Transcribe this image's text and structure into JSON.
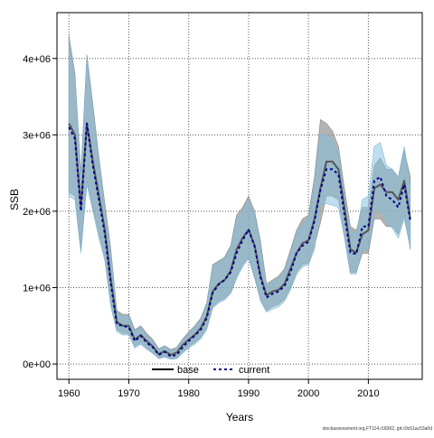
{
  "chart_data": {
    "type": "line",
    "title": "",
    "xlabel": "Years",
    "ylabel": "SSB",
    "xlim": [
      1958,
      2019
    ],
    "ylim": [
      -200000,
      4600000
    ],
    "grid": true,
    "x_ticks": [
      1960,
      1970,
      1980,
      1990,
      2000,
      2010
    ],
    "x_tick_labels": [
      "1960",
      "1970",
      "1980",
      "1990",
      "2000",
      "2010"
    ],
    "y_ticks": [
      0,
      1000000,
      2000000,
      3000000,
      4000000
    ],
    "y_tick_labels": [
      "0e+00",
      "1e+06",
      "2e+06",
      "3e+06",
      "4e+06"
    ],
    "legend": {
      "placement": "bottom-center",
      "entries": [
        {
          "label": "base",
          "style": "solid",
          "color": "#000000"
        },
        {
          "label": "current",
          "style": "dashed",
          "color": "#00008b"
        }
      ]
    },
    "colors": {
      "base_band": "#9a9a9a",
      "current_band": "#7fc0e0",
      "base_line": "#555555",
      "current_line": "#00008b"
    },
    "x": [
      1960,
      1961,
      1962,
      1963,
      1964,
      1965,
      1966,
      1967,
      1968,
      1969,
      1970,
      1971,
      1972,
      1973,
      1974,
      1975,
      1976,
      1977,
      1978,
      1979,
      1980,
      1981,
      1982,
      1983,
      1984,
      1985,
      1986,
      1987,
      1988,
      1989,
      1990,
      1991,
      1992,
      1993,
      1994,
      1995,
      1996,
      1997,
      1998,
      1999,
      2000,
      2001,
      2002,
      2003,
      2004,
      2005,
      2006,
      2007,
      2008,
      2009,
      2010,
      2011,
      2012,
      2013,
      2014,
      2015,
      2016,
      2017
    ],
    "series": [
      {
        "name": "base",
        "values": [
          3150000,
          3000000,
          2050000,
          3150000,
          2650000,
          2200000,
          1750000,
          1100000,
          550000,
          500000,
          500000,
          320000,
          380000,
          300000,
          230000,
          130000,
          170000,
          120000,
          150000,
          250000,
          320000,
          380000,
          470000,
          620000,
          950000,
          1050000,
          1100000,
          1220000,
          1500000,
          1650000,
          1760000,
          1550000,
          1150000,
          900000,
          950000,
          970000,
          1050000,
          1250000,
          1450000,
          1580000,
          1620000,
          1900000,
          2300000,
          2650000,
          2650000,
          2550000,
          2050000,
          1500000,
          1460000,
          1700000,
          1750000,
          2300000,
          2350000,
          2250000,
          2250000,
          2150000,
          2400000,
          1900000
        ]
      },
      {
        "name": "current",
        "values": [
          3100000,
          2950000,
          2000000,
          3150000,
          2600000,
          2150000,
          1700000,
          1050000,
          520000,
          500000,
          480000,
          300000,
          370000,
          280000,
          220000,
          120000,
          160000,
          100000,
          120000,
          220000,
          300000,
          370000,
          450000,
          600000,
          930000,
          1040000,
          1100000,
          1200000,
          1450000,
          1620000,
          1760000,
          1540000,
          1130000,
          870000,
          920000,
          950000,
          1020000,
          1200000,
          1450000,
          1550000,
          1600000,
          1870000,
          2280000,
          2550000,
          2550000,
          2480000,
          1960000,
          1460000,
          1440000,
          1800000,
          1800000,
          2400000,
          2450000,
          2200000,
          2150000,
          2050000,
          2350000,
          1870000
        ]
      },
      {
        "name": "base_upper",
        "values": [
          4300000,
          3800000,
          2500000,
          4050000,
          3400000,
          2700000,
          2100000,
          1500000,
          700000,
          650000,
          650000,
          450000,
          500000,
          400000,
          320000,
          200000,
          240000,
          190000,
          220000,
          330000,
          420000,
          500000,
          600000,
          800000,
          1300000,
          1350000,
          1400000,
          1550000,
          1950000,
          2050000,
          2200000,
          2000000,
          1600000,
          1050000,
          1100000,
          1150000,
          1250000,
          1500000,
          1750000,
          1900000,
          1950000,
          2450000,
          3200000,
          3150000,
          3050000,
          2850000,
          2300000,
          1800000,
          1750000,
          2050000,
          2050000,
          2600000,
          2700000,
          2550000,
          2550000,
          2450000,
          2800000,
          2450000
        ]
      },
      {
        "name": "base_lower",
        "values": [
          2250000,
          2200000,
          1500000,
          2400000,
          2050000,
          1700000,
          1400000,
          800000,
          450000,
          400000,
          400000,
          230000,
          280000,
          210000,
          150000,
          80000,
          100000,
          70000,
          80000,
          160000,
          230000,
          280000,
          350000,
          470000,
          750000,
          820000,
          860000,
          940000,
          1150000,
          1300000,
          1400000,
          1150000,
          850000,
          700000,
          750000,
          780000,
          850000,
          1000000,
          1200000,
          1300000,
          1320000,
          1550000,
          1850000,
          2200000,
          2200000,
          2150000,
          1700000,
          1200000,
          1200000,
          1450000,
          1450000,
          1900000,
          1900000,
          1800000,
          1800000,
          1700000,
          1950000,
          1500000
        ]
      },
      {
        "name": "current_upper",
        "values": [
          4250000,
          3750000,
          2450000,
          4000000,
          3350000,
          2650000,
          2050000,
          1450000,
          680000,
          630000,
          630000,
          430000,
          480000,
          380000,
          300000,
          190000,
          230000,
          180000,
          210000,
          310000,
          400000,
          480000,
          580000,
          780000,
          1280000,
          1330000,
          1380000,
          1530000,
          1900000,
          2000000,
          2150000,
          1950000,
          1550000,
          1020000,
          1070000,
          1120000,
          1220000,
          1450000,
          1700000,
          1850000,
          1900000,
          2350000,
          3000000,
          3000000,
          2950000,
          2750000,
          2200000,
          1750000,
          1700000,
          2150000,
          2200000,
          2850000,
          2900000,
          2600000,
          2550000,
          2450000,
          2850000,
          2350000
        ]
      },
      {
        "name": "current_lower",
        "values": [
          2200000,
          2150000,
          1450000,
          2350000,
          2000000,
          1650000,
          1350000,
          750000,
          420000,
          380000,
          380000,
          210000,
          260000,
          190000,
          140000,
          70000,
          90000,
          60000,
          70000,
          140000,
          210000,
          260000,
          330000,
          450000,
          730000,
          800000,
          840000,
          920000,
          1120000,
          1270000,
          1380000,
          1120000,
          820000,
          680000,
          720000,
          750000,
          820000,
          970000,
          1170000,
          1270000,
          1300000,
          1500000,
          2100000,
          2100000,
          2080000,
          2050000,
          1650000,
          1180000,
          1180000,
          1500000,
          1500000,
          2000000,
          2000000,
          1850000,
          1780000,
          1650000,
          1900000,
          1520000
        ]
      }
    ],
    "footnote": "stockassessment.org,FT114,r18362, git:c9c61ac53a0d"
  }
}
